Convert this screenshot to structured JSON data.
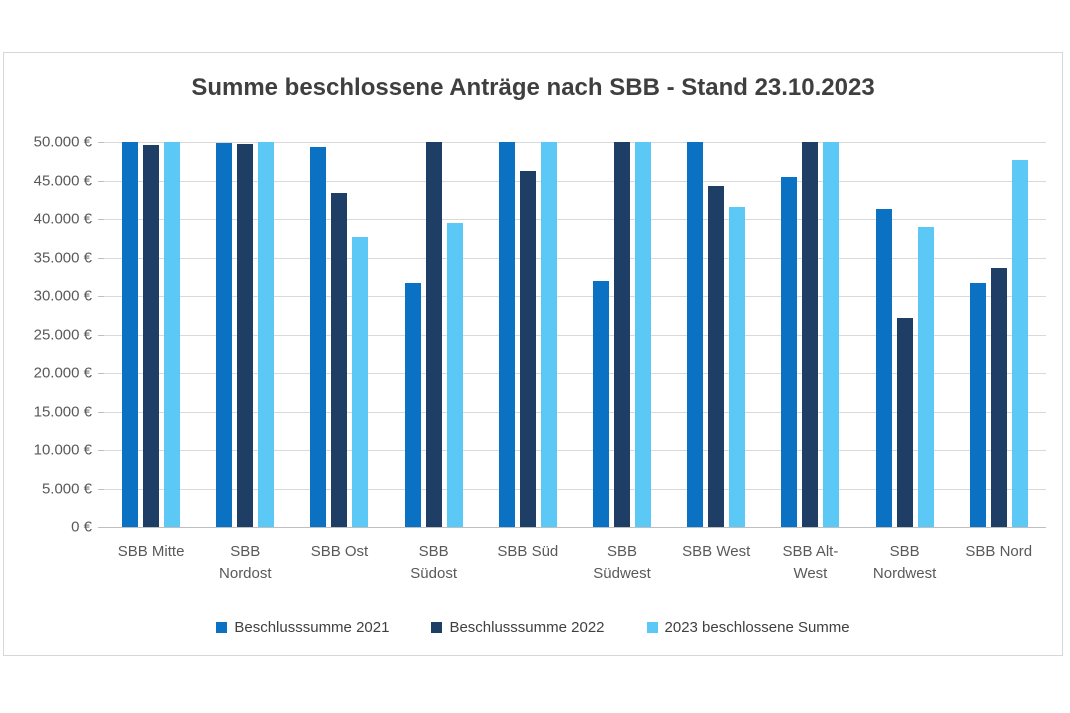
{
  "chart_data": {
    "type": "bar",
    "title": "Summe beschlossene Anträge nach SBB - Stand 23.10.2023",
    "xlabel": "",
    "ylabel": "",
    "ylim": [
      0,
      50000
    ],
    "grid": true,
    "legend_position": "bottom",
    "y_ticks": [
      "50.000 €",
      "45.000 €",
      "40.000 €",
      "35.000 €",
      "30.000 €",
      "25.000 €",
      "20.000 €",
      "15.000 €",
      "10.000 €",
      "5.000 €",
      "0 €"
    ],
    "categories": [
      "SBB Mitte",
      "SBB Nordost",
      "SBB Ost",
      "SBB Südost",
      "SBB Süd",
      "SBB Südwest",
      "SBB West",
      "SBB Alt-West",
      "SBB Nordwest",
      "SBB Nord"
    ],
    "category_label_lines": [
      [
        "SBB Mitte"
      ],
      [
        "SBB",
        "Nordost"
      ],
      [
        "SBB Ost"
      ],
      [
        "SBB",
        "Südost"
      ],
      [
        "SBB Süd"
      ],
      [
        "SBB",
        "Südwest"
      ],
      [
        "SBB West"
      ],
      [
        "SBB Alt-",
        "West"
      ],
      [
        "SBB",
        "Nordwest"
      ],
      [
        "SBB Nord"
      ]
    ],
    "series": [
      {
        "name": "Beschlusssumme 2021",
        "color": "#0B71C3",
        "values": [
          50000,
          49900,
          49300,
          31700,
          50000,
          32000,
          50000,
          45400,
          41300,
          31700
        ]
      },
      {
        "name": "Beschlusssumme 2022",
        "color": "#1F3E66",
        "values": [
          49600,
          49800,
          43400,
          50000,
          46300,
          50000,
          44300,
          50000,
          27200,
          33700
        ]
      },
      {
        "name": "2023 beschlossene Summe",
        "color": "#5BC8F5",
        "values": [
          50000,
          50000,
          37700,
          39500,
          50000,
          50000,
          41500,
          50000,
          39000,
          47700
        ]
      }
    ],
    "colors": {
      "gridline": "#d9d9d9",
      "axis_line": "#bfbfbf",
      "axis_text": "#595959",
      "title_text": "#3f3f3f",
      "legend_text": "#404040",
      "frame_border": "#d7d7d7",
      "background": "#ffffff"
    }
  }
}
